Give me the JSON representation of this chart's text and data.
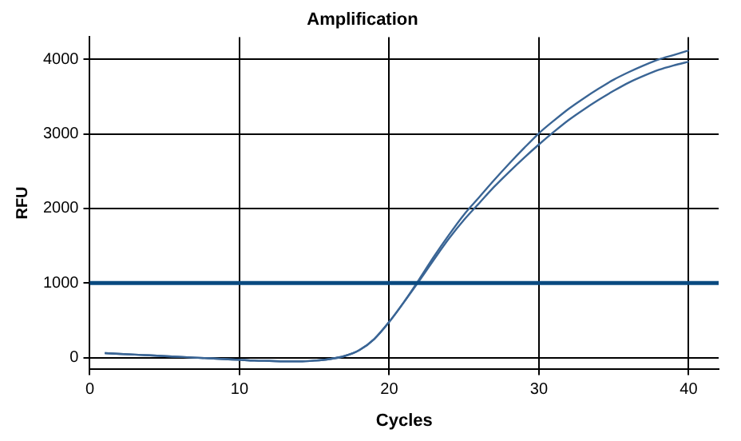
{
  "chart_data": {
    "type": "line",
    "title": "Amplification",
    "xlabel": "Cycles",
    "ylabel": "RFU",
    "x": [
      1,
      2,
      3,
      4,
      5,
      6,
      7,
      8,
      9,
      10,
      11,
      12,
      13,
      14,
      15,
      16,
      17,
      18,
      19,
      20,
      21,
      22,
      23,
      24,
      25,
      26,
      27,
      28,
      29,
      30,
      31,
      32,
      33,
      34,
      35,
      36,
      37,
      38,
      39,
      40
    ],
    "series": [
      {
        "color": "#3a6595",
        "values": [
          60,
          50,
          40,
          30,
          20,
          10,
          0,
          -10,
          -20,
          -30,
          -40,
          -45,
          -50,
          -50,
          -40,
          -20,
          20,
          100,
          250,
          480,
          750,
          1050,
          1360,
          1650,
          1920,
          2150,
          2380,
          2600,
          2810,
          3010,
          3180,
          3340,
          3480,
          3610,
          3730,
          3830,
          3920,
          4000,
          4060,
          4120
        ]
      },
      {
        "color": "#3a6595",
        "values": [
          60,
          50,
          40,
          30,
          20,
          10,
          0,
          -10,
          -20,
          -30,
          -40,
          -45,
          -50,
          -50,
          -40,
          -20,
          20,
          100,
          250,
          480,
          750,
          1030,
          1320,
          1600,
          1850,
          2070,
          2290,
          2490,
          2680,
          2860,
          3030,
          3190,
          3330,
          3460,
          3580,
          3690,
          3780,
          3860,
          3920,
          3970
        ]
      }
    ],
    "xlim": [
      0,
      42
    ],
    "xticks": [
      0,
      10,
      20,
      30,
      40
    ],
    "ylim": [
      -150,
      4300
    ],
    "yticks": [
      0,
      1000,
      2000,
      3000,
      4000
    ],
    "ref_lines": [
      {
        "axis": "y",
        "value": 1000,
        "color": "#0a4a80"
      }
    ],
    "grid": true,
    "marker": "none",
    "line_style": "solid",
    "legend": false
  }
}
